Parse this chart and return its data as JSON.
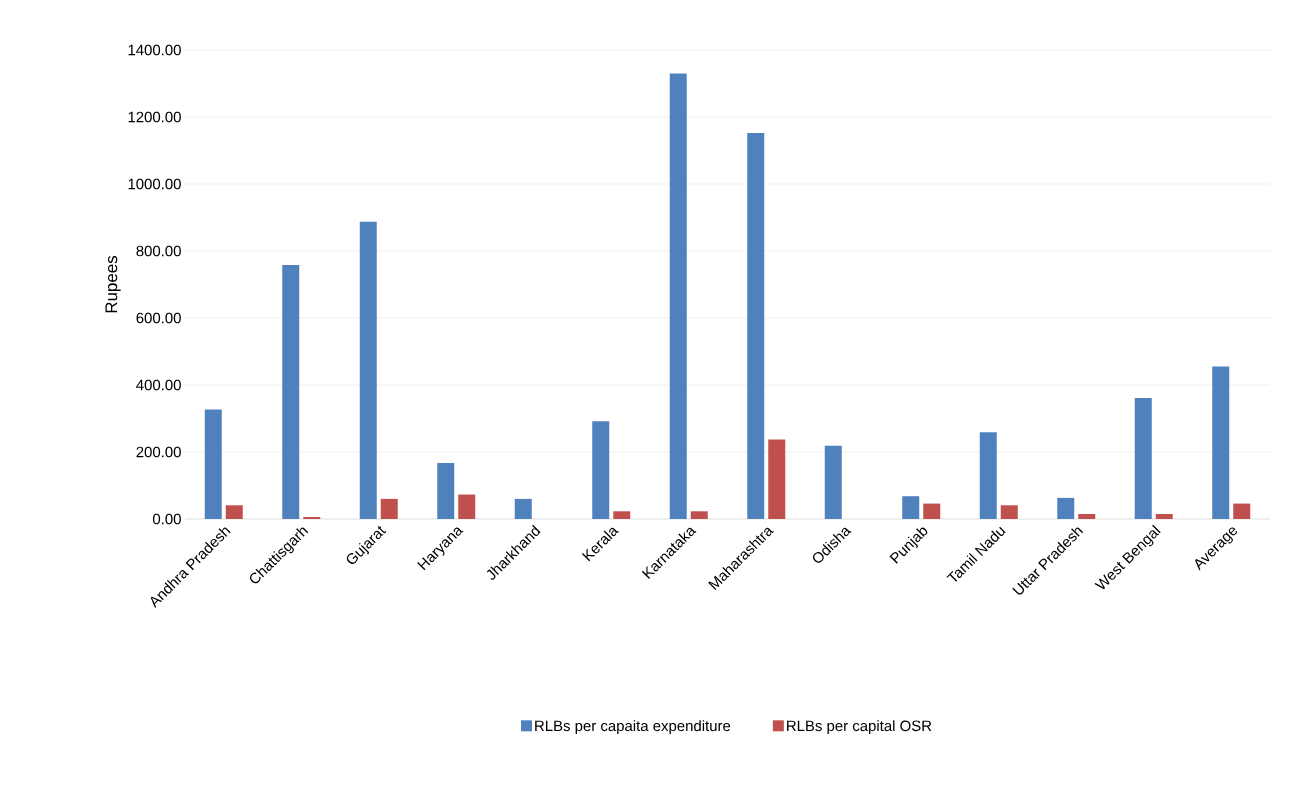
{
  "chart_data": {
    "type": "bar",
    "ylabel": "Rupees",
    "categories": [
      "Andhra Pradesh",
      "Chattisgarh",
      "Gujarat",
      "Haryana",
      "Jharkhand",
      "Kerala",
      "Karnataka",
      "Maharashtra",
      "Odisha",
      "Punjab",
      "Tamil Nadu",
      "Uttar Pradesh",
      "West Bengal",
      "Average"
    ],
    "series": [
      {
        "name": "RLBs per capaita expenditure",
        "color": "#4f81bd",
        "values": [
          327,
          758,
          887,
          167,
          60,
          292,
          1330,
          1152,
          219,
          68,
          259,
          63,
          361,
          455
        ]
      },
      {
        "name": "RLBs per capital OSR",
        "color": "#c0504d",
        "values": [
          41,
          6,
          60,
          73,
          null,
          23,
          23,
          237,
          null,
          46,
          41,
          15,
          15,
          46
        ]
      }
    ],
    "ylim": [
      0,
      1400
    ],
    "yticks": [
      {
        "value": 0,
        "label": "0.00"
      },
      {
        "value": 200,
        "label": "200.00"
      },
      {
        "value": 400,
        "label": "400.00"
      },
      {
        "value": 600,
        "label": "600.00"
      },
      {
        "value": 800,
        "label": "800.00"
      },
      {
        "value": 1000,
        "label": "1000.00"
      },
      {
        "value": 1200,
        "label": "1200.00"
      },
      {
        "value": 1400,
        "label": "1400.00"
      }
    ],
    "grid": "y",
    "legend": "bottom"
  }
}
